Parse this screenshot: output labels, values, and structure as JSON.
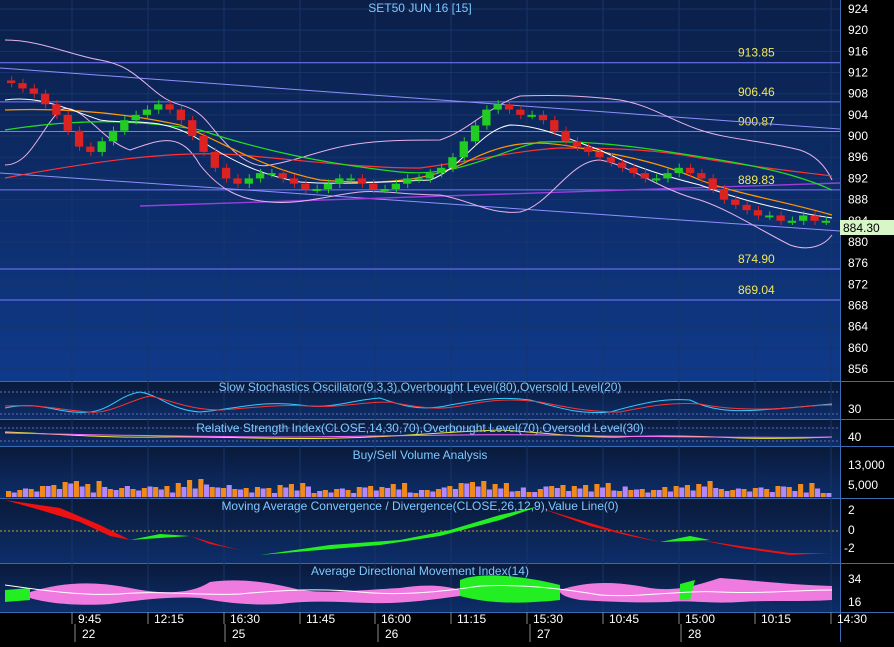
{
  "title": "SET50 JUN 16  [15]",
  "colors": {
    "background": "#000000",
    "panel_top": "#0b1f48",
    "panel_bottom": "#0f3a8a",
    "grid": "#1d3f7a",
    "axis_text": "#ffffff",
    "panel_title": "#7ec8ff",
    "level_label": "#f2e85a",
    "up_candle": "#22cc22",
    "down_candle": "#dd2222",
    "current_price_bg": "#d8f7c9"
  },
  "x_time_labels": [
    "9:45",
    "12:15",
    "16:30",
    "11:45",
    "16:00",
    "11:15",
    "15:30",
    "10:45",
    "15:00",
    "10:15",
    "14:30"
  ],
  "x_day_labels": [
    "22",
    "25",
    "26",
    "27",
    "28"
  ],
  "price_axis": {
    "ticks": [
      924,
      920,
      916,
      912,
      908,
      904,
      900,
      896,
      892,
      888,
      884,
      880,
      876,
      872,
      868,
      864,
      860,
      856
    ],
    "current_price_label": "884.30"
  },
  "level_lines": [
    {
      "label": "913.85",
      "value": 913.85
    },
    {
      "label": "906.46",
      "value": 906.46
    },
    {
      "label": "900.87",
      "value": 900.87
    },
    {
      "label": "889.83",
      "value": 889.83
    },
    {
      "label": "874.90",
      "value": 874.9
    },
    {
      "label": "869.04",
      "value": 869.04
    }
  ],
  "panels": {
    "stochastic": {
      "title": "Slow Stochastics Oscillator(9,3,3),Overbought Level(80),Oversold Level(20)",
      "axis": [
        "30"
      ]
    },
    "rsi": {
      "title": "Relative Strength Index(CLOSE,14,30,70),Overbought Level(70),Oversold Level(30)",
      "axis": [
        "40"
      ]
    },
    "volume": {
      "title": "Buy/Sell Volume Analysis",
      "axis": [
        "13,000",
        "5,000"
      ]
    },
    "macd": {
      "title": "Moving Average Convergence / Divergence(CLOSE,26,12,9),Value Line(0)",
      "axis": [
        "2",
        "0",
        "-2"
      ]
    },
    "adx": {
      "title": "Average Directional Movement Index(14)",
      "axis": [
        "34",
        "16"
      ]
    }
  },
  "chart_data": {
    "type": "candlestick",
    "symbol": "SET50 JUN 16",
    "interval": "15",
    "ylim": [
      854,
      926
    ],
    "close_series": [
      910,
      909,
      908,
      906,
      904,
      901,
      898,
      897,
      899,
      901,
      903,
      904,
      905,
      906,
      905,
      903,
      900,
      897,
      894,
      892,
      891,
      892,
      893,
      893,
      892,
      891,
      890,
      890,
      891,
      892,
      892,
      891,
      890,
      890,
      891,
      892,
      892,
      893,
      894,
      896,
      899,
      902,
      905,
      906,
      905,
      904,
      904,
      903,
      901,
      899,
      898,
      897,
      896,
      895,
      894,
      893,
      892,
      892,
      893,
      894,
      893,
      892,
      890,
      888,
      887,
      886,
      885,
      885,
      884,
      884,
      885,
      884,
      884
    ]
  }
}
